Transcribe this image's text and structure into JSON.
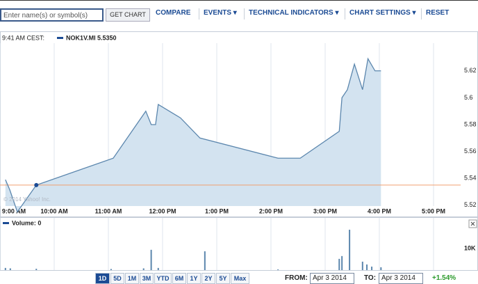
{
  "toolbar": {
    "search_placeholder": "Enter name(s) or symbol(s)",
    "get_chart": "GET CHART",
    "links": [
      "COMPARE",
      "EVENTS ▾",
      "TECHNICAL INDICATORS ▾",
      "CHART SETTINGS ▾",
      "RESET"
    ]
  },
  "header": {
    "time": "9:41 AM CEST:"
  },
  "watermark": "© 2014 Yahoo! Inc.",
  "range_bar": {
    "buttons": [
      "1D",
      "5D",
      "1M",
      "3M",
      "YTD",
      "6M",
      "1Y",
      "2Y",
      "5Y",
      "Max"
    ],
    "from_label": "FROM:",
    "from_value": "Apr 3 2014",
    "to_label": "TO:",
    "to_value": "Apr 3 2014",
    "change": "+1.54%"
  },
  "chart_data": [
    {
      "type": "area",
      "x": [
        9.1,
        9.18,
        9.32,
        9.67,
        11.09,
        11.69,
        11.79,
        11.87,
        11.92,
        12.33,
        12.69,
        14.13,
        14.54,
        15.26,
        15.31,
        15.41,
        15.54,
        15.69,
        15.79,
        15.92,
        16.03
      ],
      "series": [
        {
          "name": "NOK1V.MI",
          "color": "#5b86ad",
          "values": [
            5.539,
            5.5315,
            5.515,
            5.535,
            5.555,
            5.59,
            5.58,
            5.58,
            5.595,
            5.585,
            5.57,
            5.555,
            5.555,
            5.575,
            5.6,
            5.606,
            5.625,
            5.606,
            5.629,
            5.62,
            5.62
          ]
        }
      ],
      "fill_color": "#d3e3f0",
      "reference_line": 5.535,
      "reference_label": "5.5350",
      "reference_color": "#f0a070",
      "highlight_index": 3,
      "xlim": [
        9,
        17.5
      ],
      "xticks": [
        {
          "value": 9,
          "label": "9:00 AM"
        },
        {
          "value": 10,
          "label": "10:00 AM"
        },
        {
          "value": 11,
          "label": "11:00 AM"
        },
        {
          "value": 12,
          "label": "12:00 PM"
        },
        {
          "value": 13,
          "label": "1:00 PM"
        },
        {
          "value": 14,
          "label": "2:00 PM"
        },
        {
          "value": 15,
          "label": "3:00 PM"
        },
        {
          "value": 16,
          "label": "4:00 PM"
        },
        {
          "value": 17,
          "label": "5:00 PM"
        }
      ],
      "ylim": [
        5.5194,
        5.6406
      ],
      "yticks": [
        5.52,
        5.54,
        5.56,
        5.58,
        5.6,
        5.62
      ],
      "grid": "x"
    },
    {
      "type": "bar",
      "title": "Volume: 0",
      "x": [
        9.1,
        9.19,
        9.67,
        11.05,
        11.65,
        11.79,
        11.92,
        12.78,
        14.13,
        15.26,
        15.31,
        15.45,
        15.69,
        15.77,
        15.86,
        16.03
      ],
      "values": [
        1000,
        800,
        600,
        500,
        800,
        9400,
        1000,
        8700,
        300,
        5200,
        6500,
        18700,
        3900,
        2600,
        1600,
        1300
      ],
      "color": "#5b86ad",
      "xlim": [
        9,
        17.5
      ],
      "xticks": [
        9,
        10,
        11,
        12,
        13,
        14,
        15,
        16,
        17
      ],
      "ylim": [
        0,
        20000
      ],
      "yticks": [
        {
          "value": 10000,
          "label": "10K"
        }
      ],
      "grid": "x"
    }
  ]
}
